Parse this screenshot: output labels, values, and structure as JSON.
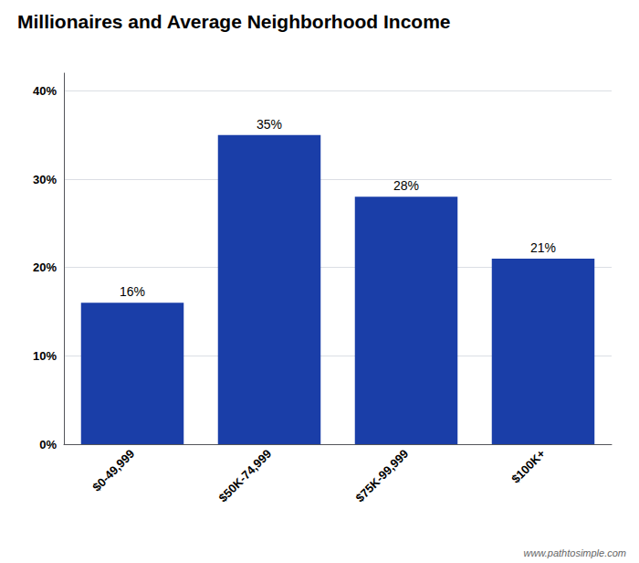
{
  "chart_data": {
    "type": "bar",
    "title": "Millionaires and Average Neighborhood Income",
    "categories": [
      "$0-49,999",
      "$50K-74,999",
      "$75K-99,999",
      "$100K+"
    ],
    "values": [
      16,
      35,
      28,
      21
    ],
    "value_labels": [
      "16%",
      "35%",
      "28%",
      "21%"
    ],
    "data_labels": true,
    "color": "#1a3ea8",
    "ylim": [
      0,
      42
    ],
    "yticks": [
      {
        "value": 0,
        "label": "0%"
      },
      {
        "value": 10,
        "label": "10%"
      },
      {
        "value": 20,
        "label": "20%"
      },
      {
        "value": 30,
        "label": "30%"
      },
      {
        "value": 40,
        "label": "40%"
      }
    ],
    "grid": true,
    "annotations": [
      "www.pathtosimple.com"
    ]
  }
}
